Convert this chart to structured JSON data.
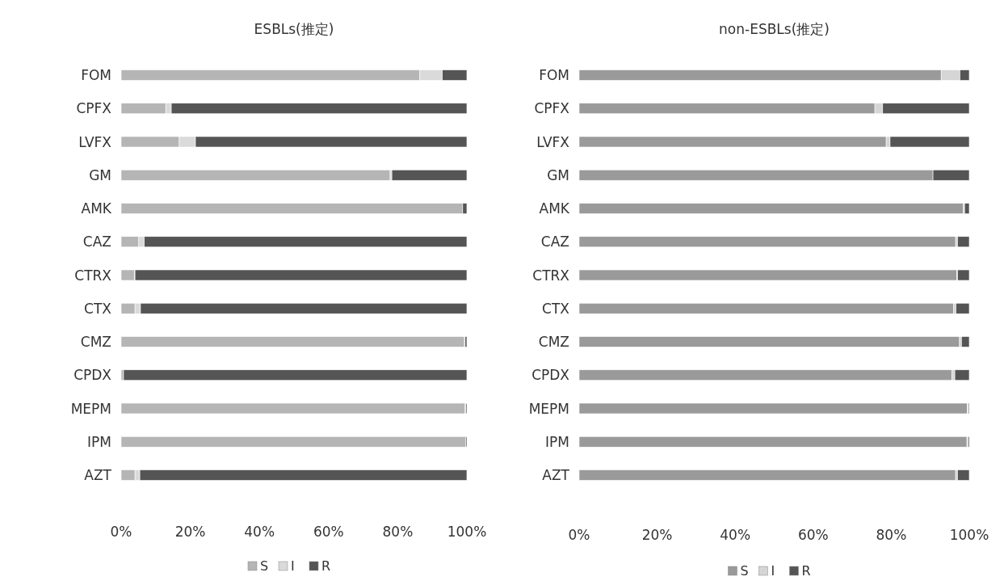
{
  "chart_data": [
    {
      "type": "bar",
      "title": "ESBLs(推定)",
      "orientation": "horizontal",
      "stacked": true,
      "legend": "bottom",
      "grid": false,
      "categories": [
        "FOM",
        "CPFX",
        "LVFX",
        "GM",
        "AMK",
        "CAZ",
        "CTRX",
        "CTX",
        "CMZ",
        "CPDX",
        "MEPM",
        "IPM",
        "AZT"
      ],
      "xlim": [
        0,
        100
      ],
      "xticks": [
        {
          "value": 0,
          "label": "0%"
        },
        {
          "value": 20,
          "label": "20%"
        },
        {
          "value": 40,
          "label": "40%"
        },
        {
          "value": 60,
          "label": "60%"
        },
        {
          "value": 80,
          "label": "80%"
        },
        {
          "value": 100,
          "label": "100%"
        }
      ],
      "series": [
        {
          "name": "S",
          "color": "#b5b5b5",
          "values": [
            86.4,
            12.9,
            16.8,
            77.8,
            98.8,
            5.1,
            3.8,
            4.0,
            99.3,
            0.7,
            99.5,
            99.7,
            4.0
          ]
        },
        {
          "name": "I",
          "color": "#dadada",
          "values": [
            6.5,
            1.6,
            4.7,
            0.5,
            0,
            1.6,
            0.2,
            1.6,
            0.2,
            0,
            0.2,
            0,
            1.4
          ]
        },
        {
          "name": "R",
          "color": "#555555",
          "values": [
            7.1,
            85.5,
            78.5,
            21.7,
            1.2,
            93.3,
            96.0,
            94.4,
            0.5,
            99.3,
            0.3,
            0.3,
            94.6
          ]
        }
      ]
    },
    {
      "type": "bar",
      "title": "non-ESBLs(推定)",
      "orientation": "horizontal",
      "stacked": true,
      "legend": "bottom",
      "grid": false,
      "categories": [
        "FOM",
        "CPFX",
        "LVFX",
        "GM",
        "AMK",
        "CAZ",
        "CTRX",
        "CTX",
        "CMZ",
        "CPDX",
        "MEPM",
        "IPM",
        "AZT"
      ],
      "xlim": [
        0,
        100
      ],
      "xticks": [
        {
          "value": 0,
          "label": "0%"
        },
        {
          "value": 20,
          "label": "20%"
        },
        {
          "value": 40,
          "label": "40%"
        },
        {
          "value": 60,
          "label": "60%"
        },
        {
          "value": 80,
          "label": "80%"
        },
        {
          "value": 100,
          "label": "100%"
        }
      ],
      "series": [
        {
          "name": "S",
          "color": "#9a9a9a",
          "values": [
            92.8,
            75.8,
            78.7,
            90.7,
            98.5,
            96.5,
            96.8,
            96.0,
            97.5,
            95.5,
            99.5,
            99.4,
            96.5
          ]
        },
        {
          "name": "I",
          "color": "#d5d5d5",
          "values": [
            4.8,
            2.0,
            1.0,
            0,
            0.3,
            0.5,
            0.2,
            0.6,
            0.5,
            0.8,
            0.3,
            0.3,
            0.5
          ]
        },
        {
          "name": "R",
          "color": "#555555",
          "values": [
            2.4,
            22.2,
            20.3,
            9.3,
            1.2,
            3.0,
            3.0,
            3.4,
            2.0,
            3.7,
            0.2,
            0.3,
            3.0
          ]
        }
      ]
    }
  ]
}
